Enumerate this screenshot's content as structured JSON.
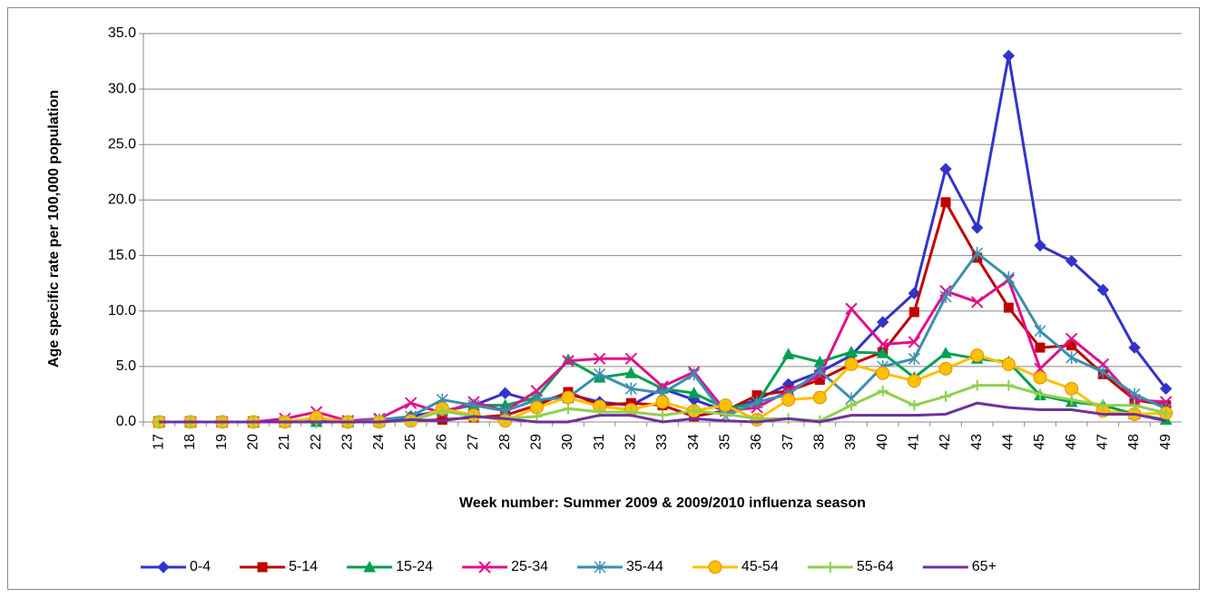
{
  "chart_data": {
    "type": "line",
    "y_label": "Age specific  rate per 100,000 population",
    "x_label": "Week number: Summer 2009 & 2009/2010 influenza season",
    "categories": [
      "17",
      "18",
      "19",
      "20",
      "21",
      "22",
      "23",
      "24",
      "25",
      "26",
      "27",
      "28",
      "29",
      "30",
      "31",
      "32",
      "33",
      "34",
      "35",
      "36",
      "37",
      "38",
      "39",
      "40",
      "41",
      "42",
      "43",
      "44",
      "45",
      "46",
      "47",
      "48",
      "49"
    ],
    "ylim": [
      0,
      35
    ],
    "yticks": [
      {
        "value": 0,
        "label": "0.0"
      },
      {
        "value": 5,
        "label": "5.0"
      },
      {
        "value": 10,
        "label": "10.0"
      },
      {
        "value": 15,
        "label": "15.0"
      },
      {
        "value": 20,
        "label": "20.0"
      },
      {
        "value": 25,
        "label": "25.0"
      },
      {
        "value": 30,
        "label": "30.0"
      },
      {
        "value": 35,
        "label": "35.0"
      }
    ],
    "grid": true,
    "legend": "bottom",
    "series": [
      {
        "name": "0-4",
        "color": "#3333cc",
        "marker": "diamond",
        "values": [
          0,
          0,
          0,
          0,
          0,
          0,
          0,
          0.1,
          0.5,
          1.0,
          1.5,
          2.6,
          1.8,
          2.5,
          1.8,
          1.5,
          3.0,
          2.0,
          1.0,
          2.0,
          3.4,
          4.5,
          6.0,
          9.0,
          11.6,
          22.8,
          17.5,
          33.0,
          15.9,
          14.5,
          11.9,
          6.7,
          3.0
        ]
      },
      {
        "name": "5-14",
        "color": "#c00000",
        "marker": "square",
        "values": [
          0,
          0,
          0,
          0,
          0,
          0,
          0,
          0,
          0.1,
          0.2,
          0.4,
          0.6,
          1.5,
          2.7,
          1.5,
          1.7,
          1.5,
          0.5,
          1.0,
          2.4,
          2.8,
          3.8,
          5.2,
          6.3,
          9.9,
          19.8,
          14.8,
          10.3,
          6.7,
          6.9,
          4.3,
          2.0,
          1.5
        ]
      },
      {
        "name": "15-24",
        "color": "#00a050",
        "marker": "triangle",
        "values": [
          0,
          0,
          0,
          0,
          0,
          0,
          0,
          0,
          0.2,
          1.0,
          1.5,
          1.5,
          2.2,
          5.6,
          4.0,
          4.4,
          3.0,
          2.6,
          1.2,
          1.7,
          6.1,
          5.4,
          6.3,
          6.2,
          4.0,
          6.2,
          5.7,
          5.4,
          2.4,
          1.8,
          1.5,
          0.7,
          0.2
        ]
      },
      {
        "name": "25-34",
        "color": "#e0108c",
        "marker": "x",
        "values": [
          0,
          0,
          0,
          0,
          0.3,
          0.9,
          0.1,
          0.3,
          1.7,
          0.8,
          1.8,
          1.0,
          2.8,
          5.5,
          5.7,
          5.7,
          3.2,
          4.5,
          1.0,
          1.3,
          2.8,
          4.2,
          10.2,
          7.0,
          7.2,
          11.8,
          10.8,
          12.8,
          4.8,
          7.5,
          5.2,
          2.0,
          1.8
        ]
      },
      {
        "name": "35-44",
        "color": "#3a8fb0",
        "marker": "star",
        "values": [
          0,
          0,
          0,
          0,
          0,
          0.3,
          0,
          0.2,
          0.5,
          2.0,
          1.5,
          1.0,
          2.0,
          2.2,
          4.3,
          3.0,
          2.6,
          4.3,
          0.5,
          1.8,
          2.5,
          4.6,
          2.1,
          5.0,
          5.7,
          11.3,
          15.2,
          13.0,
          8.2,
          5.8,
          4.5,
          2.5,
          1.2
        ]
      },
      {
        "name": "45-54",
        "color": "#ffc000",
        "marker": "circle",
        "values": [
          0,
          0,
          0,
          0,
          0,
          0.4,
          0,
          0,
          0.1,
          1.2,
          0.6,
          0.1,
          1.3,
          2.2,
          1.4,
          1.1,
          1.8,
          1.0,
          1.5,
          0.2,
          2.0,
          2.2,
          5.2,
          4.4,
          3.7,
          4.8,
          6.0,
          5.2,
          4.0,
          3.0,
          1.0,
          0.7,
          0.8
        ]
      },
      {
        "name": "55-64",
        "color": "#90d050",
        "marker": "plus",
        "values": [
          0,
          0,
          0,
          0,
          0,
          0,
          0,
          0,
          0.1,
          1.0,
          0.5,
          0.3,
          0.5,
          1.2,
          0.9,
          0.9,
          0.6,
          1.0,
          0.7,
          0.3,
          0.3,
          0.1,
          1.5,
          2.8,
          1.5,
          2.3,
          3.3,
          3.3,
          2.5,
          2.0,
          1.5,
          1.5,
          0.8
        ]
      },
      {
        "name": "65+",
        "color": "#7030a0",
        "marker": "none",
        "values": [
          0,
          0,
          0,
          0,
          0,
          0,
          0,
          0,
          0.2,
          0.1,
          0.5,
          0.3,
          0,
          0,
          0.6,
          0.6,
          0,
          0.3,
          0.1,
          0,
          0.3,
          0,
          0.6,
          0.6,
          0.6,
          0.7,
          1.7,
          1.3,
          1.1,
          1.1,
          0.7,
          0.7,
          0.1
        ]
      }
    ]
  }
}
